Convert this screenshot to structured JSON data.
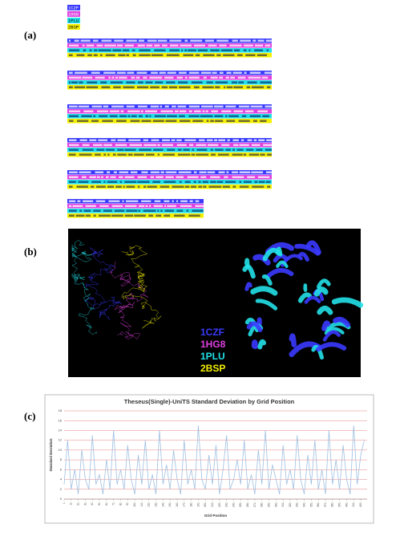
{
  "figure": {
    "panel_a": {
      "label": "(a)"
    },
    "panel_b": {
      "label": "(b)"
    },
    "panel_c": {
      "label": "(c)"
    },
    "structures": [
      {
        "name": "1CZF",
        "color": "#3a3aff"
      },
      {
        "name": "1HG8",
        "color": "#e040e0"
      },
      {
        "name": "1PLU",
        "color": "#22e0e8"
      },
      {
        "name": "2BSP",
        "color": "#f4f000"
      }
    ]
  },
  "chart_data": {
    "type": "line",
    "title": "Theseus(Single)-UniTS Standard Deviation by Grid Position",
    "x_label": "Grid Position",
    "y_label": "Standard Deviation",
    "color": "#9fbfe0",
    "grid": true,
    "xlim": [
      1,
      430
    ],
    "ylim": [
      0,
      18
    ],
    "yticks": [
      0,
      2,
      4,
      6,
      8,
      10,
      12,
      14,
      16,
      18
    ],
    "xticks": [
      1,
      11,
      21,
      31,
      41,
      51,
      61,
      71,
      81,
      91,
      101,
      111,
      121,
      131,
      141,
      151,
      161,
      171,
      181,
      191,
      201,
      211,
      221,
      231,
      241,
      251,
      261,
      271,
      281,
      291,
      301,
      311,
      321,
      331,
      341,
      351,
      361,
      371,
      381,
      391,
      401,
      411,
      421
    ],
    "x": [
      1,
      6,
      11,
      16,
      21,
      26,
      31,
      36,
      41,
      46,
      51,
      56,
      61,
      66,
      71,
      76,
      81,
      86,
      91,
      96,
      101,
      106,
      111,
      116,
      121,
      126,
      131,
      136,
      141,
      146,
      151,
      156,
      161,
      166,
      171,
      176,
      181,
      186,
      191,
      196,
      201,
      206,
      211,
      216,
      221,
      226,
      231,
      236,
      241,
      246,
      251,
      256,
      261,
      266,
      271,
      276,
      281,
      286,
      291,
      296,
      301,
      306,
      311,
      316,
      321,
      326,
      331,
      336,
      341,
      346,
      351,
      356,
      361,
      366,
      371,
      376,
      381,
      386,
      391,
      396,
      401,
      406,
      411,
      416,
      421,
      426
    ],
    "values": [
      3,
      12,
      2,
      6,
      1,
      10,
      4,
      2,
      13,
      3,
      5,
      1,
      8,
      2,
      14,
      3,
      6,
      2,
      11,
      4,
      1,
      9,
      3,
      12,
      2,
      5,
      1,
      14,
      3,
      7,
      2,
      10,
      4,
      1,
      12,
      3,
      6,
      2,
      15,
      4,
      2,
      9,
      3,
      11,
      1,
      6,
      13,
      2,
      4,
      8,
      3,
      12,
      2,
      5,
      1,
      10,
      3,
      14,
      2,
      7,
      4,
      1,
      11,
      3,
      6,
      2,
      13,
      4,
      1,
      9,
      3,
      12,
      2,
      6,
      1,
      14,
      3,
      8,
      2,
      11,
      4,
      1,
      15,
      3,
      9,
      12
    ]
  }
}
